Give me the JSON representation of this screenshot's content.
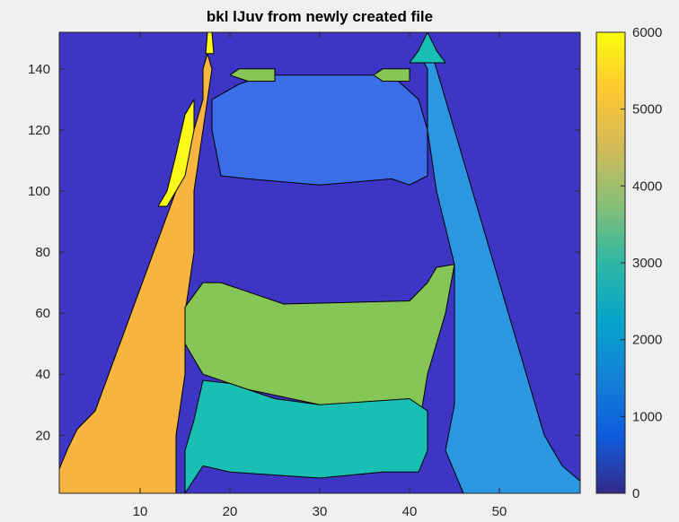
{
  "chart_data": {
    "type": "contourf",
    "title": "bkl lJuv from newly created file",
    "xlabel": "",
    "ylabel": "",
    "xlim": [
      1,
      59
    ],
    "ylim": [
      1,
      152
    ],
    "x_ticks": [
      10,
      20,
      30,
      40,
      50
    ],
    "y_ticks": [
      20,
      40,
      60,
      80,
      100,
      120,
      140
    ],
    "colorbar": {
      "limits": [
        0,
        6000
      ],
      "ticks": [
        0,
        1000,
        2000,
        3000,
        4000,
        5000,
        6000
      ],
      "colormap": "parula",
      "placement": "right"
    },
    "grid": false,
    "levels": [
      {
        "value": 200,
        "color": "#3d35c4"
      },
      {
        "value": 1500,
        "color": "#3b6ee8"
      },
      {
        "value": 2000,
        "color": "#2b97e2"
      },
      {
        "value": 3000,
        "color": "#18bfb2"
      },
      {
        "value": 4000,
        "color": "#86c657"
      },
      {
        "value": 5000,
        "color": "#f7b43f"
      },
      {
        "value": 6000,
        "color": "#f9f91a"
      }
    ],
    "regions": [
      {
        "name": "left-orange-leg",
        "level": 5000,
        "points": [
          [
            1,
            9
          ],
          [
            2,
            16
          ],
          [
            3,
            22
          ],
          [
            5,
            28
          ],
          [
            6,
            36
          ],
          [
            7,
            44
          ],
          [
            8,
            52
          ],
          [
            9,
            60
          ],
          [
            10,
            68
          ],
          [
            11,
            76
          ],
          [
            12,
            84
          ],
          [
            13,
            92
          ],
          [
            14,
            100
          ],
          [
            15,
            110
          ],
          [
            16,
            120
          ],
          [
            17,
            130
          ],
          [
            17,
            140
          ],
          [
            17.5,
            145
          ],
          [
            18,
            140
          ],
          [
            17,
            120
          ],
          [
            16,
            100
          ],
          [
            16,
            80
          ],
          [
            15,
            60
          ],
          [
            15,
            40
          ],
          [
            14,
            20
          ],
          [
            14,
            1
          ],
          [
            1,
            1
          ]
        ]
      },
      {
        "name": "left-yellow-patch",
        "level": 6000,
        "points": [
          [
            12,
            95
          ],
          [
            13,
            100
          ],
          [
            14,
            112
          ],
          [
            15,
            125
          ],
          [
            16,
            130
          ],
          [
            16,
            120
          ],
          [
            15,
            105
          ],
          [
            14,
            100
          ],
          [
            13,
            95
          ]
        ]
      },
      {
        "name": "left-top-yellow-spike",
        "level": 6000,
        "points": [
          [
            17.3,
            145
          ],
          [
            17.5,
            152
          ],
          [
            18,
            152
          ],
          [
            18.2,
            145
          ]
        ]
      },
      {
        "name": "center-green-region",
        "level": 4000,
        "points": [
          [
            15,
            62
          ],
          [
            17,
            70
          ],
          [
            19,
            70
          ],
          [
            22,
            67
          ],
          [
            26,
            63
          ],
          [
            40,
            64
          ],
          [
            42,
            70
          ],
          [
            43,
            75
          ],
          [
            45,
            76
          ],
          [
            44,
            60
          ],
          [
            42,
            40
          ],
          [
            41,
            22
          ],
          [
            30,
            30
          ],
          [
            22,
            35
          ],
          [
            17,
            40
          ],
          [
            15,
            50
          ]
        ]
      },
      {
        "name": "center-teal-region",
        "level": 3000,
        "points": [
          [
            15,
            1
          ],
          [
            15,
            15
          ],
          [
            16,
            25
          ],
          [
            17,
            38
          ],
          [
            20,
            37
          ],
          [
            25,
            32
          ],
          [
            30,
            30
          ],
          [
            40,
            32
          ],
          [
            42,
            28
          ],
          [
            42,
            15
          ],
          [
            41,
            8
          ],
          [
            37,
            8
          ],
          [
            30,
            6
          ],
          [
            20,
            8
          ],
          [
            17,
            10
          ]
        ]
      },
      {
        "name": "right-light-blue-leg",
        "level": 2000,
        "points": [
          [
            41,
            145
          ],
          [
            42,
            150
          ],
          [
            43,
            140
          ],
          [
            44,
            130
          ],
          [
            45,
            120
          ],
          [
            46,
            110
          ],
          [
            47,
            100
          ],
          [
            48,
            90
          ],
          [
            49,
            80
          ],
          [
            50,
            70
          ],
          [
            51,
            60
          ],
          [
            52,
            50
          ],
          [
            53,
            40
          ],
          [
            54,
            30
          ],
          [
            55,
            20
          ],
          [
            57,
            10
          ],
          [
            59,
            5
          ],
          [
            59,
            1
          ],
          [
            46,
            1
          ],
          [
            44,
            15
          ],
          [
            45,
            30
          ],
          [
            45,
            60
          ],
          [
            45,
            76
          ],
          [
            43,
            100
          ],
          [
            42,
            120
          ],
          [
            42,
            140
          ]
        ]
      },
      {
        "name": "center-blue-upper",
        "level": 1500,
        "points": [
          [
            18,
            130
          ],
          [
            18,
            120
          ],
          [
            19,
            105
          ],
          [
            22,
            104
          ],
          [
            30,
            102
          ],
          [
            38,
            104
          ],
          [
            40,
            102
          ],
          [
            42,
            105
          ],
          [
            42,
            120
          ],
          [
            41,
            130
          ],
          [
            38,
            138
          ],
          [
            30,
            138
          ],
          [
            24,
            138
          ],
          [
            21,
            135
          ]
        ]
      },
      {
        "name": "right-top-teal-cap",
        "level": 3000,
        "points": [
          [
            40,
            142
          ],
          [
            41,
            146
          ],
          [
            42,
            152
          ],
          [
            43,
            146
          ],
          [
            44,
            142
          ]
        ]
      },
      {
        "name": "top-left-green-bump",
        "level": 4000,
        "points": [
          [
            20,
            138
          ],
          [
            21,
            140
          ],
          [
            25,
            140
          ],
          [
            25,
            136
          ],
          [
            22,
            136
          ]
        ]
      },
      {
        "name": "top-right-green-bump",
        "level": 4000,
        "points": [
          [
            36,
            138
          ],
          [
            37,
            140
          ],
          [
            40,
            140
          ],
          [
            40,
            136
          ],
          [
            37,
            136
          ]
        ]
      }
    ]
  }
}
